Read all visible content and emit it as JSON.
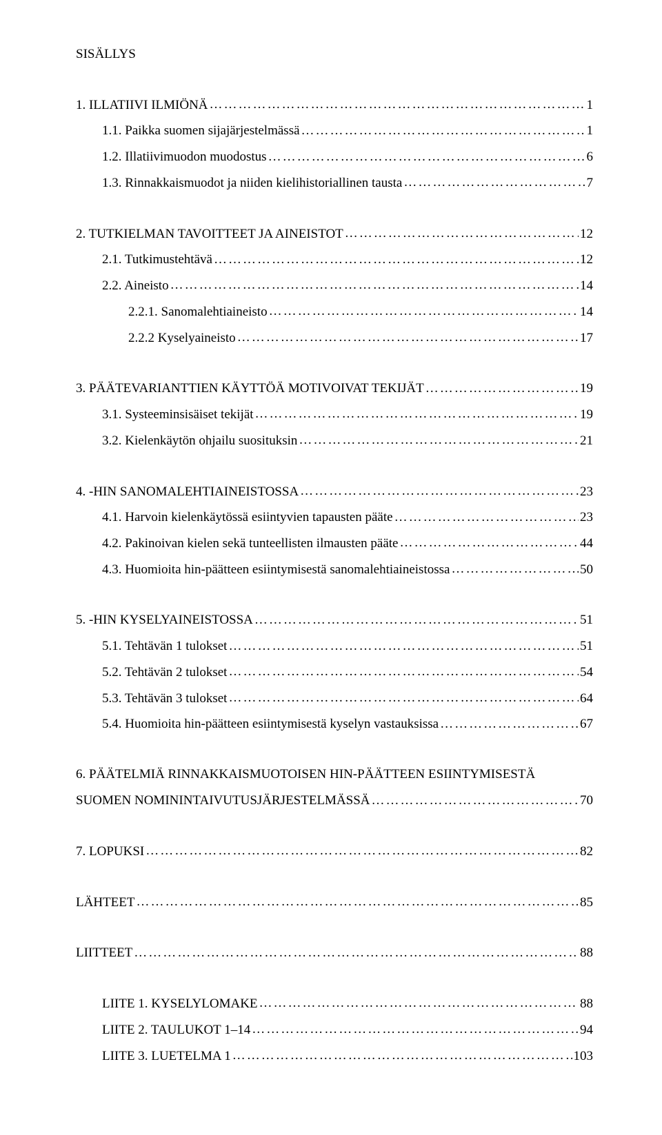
{
  "doc": {
    "title": "SISÄLLYS",
    "font_family": "Times New Roman",
    "font_size_pt": 14,
    "text_color": "#000000",
    "background_color": "#ffffff"
  },
  "toc": [
    {
      "entries": [
        {
          "level": 1,
          "label": "1. ILLATIIVI ILMIÖNÄ",
          "page": "1"
        },
        {
          "level": 2,
          "label": "1.1. Paikka suomen sijajärjestelmässä",
          "page": "1"
        },
        {
          "level": 2,
          "label": "1.2. Illatiivimuodon muodostus",
          "page": "6"
        },
        {
          "level": 2,
          "label": "1.3. Rinnakkaismuodot ja niiden kielihistoriallinen tausta",
          "page": "7"
        }
      ]
    },
    {
      "entries": [
        {
          "level": 1,
          "label": "2. TUTKIELMAN TAVOITTEET JA AINEISTOT",
          "page": "12"
        },
        {
          "level": 2,
          "label": "2.1. Tutkimustehtävä",
          "page": "12"
        },
        {
          "level": 2,
          "label": "2.2. Aineisto",
          "page": "14"
        },
        {
          "level": 3,
          "label": "2.2.1. Sanomalehtiaineisto",
          "page": "14"
        },
        {
          "level": 3,
          "label": "2.2.2 Kyselyaineisto",
          "page": "17"
        }
      ]
    },
    {
      "entries": [
        {
          "level": 1,
          "label": "3. PÄÄTEVARIANTTIEN KÄYTTÖÄ MOTIVOIVAT TEKIJÄT",
          "page": "19"
        },
        {
          "level": 2,
          "label": "3.1. Systeeminsisäiset tekijät",
          "page": "19"
        },
        {
          "level": 2,
          "label": "3.2. Kielenkäytön ohjailu suosituksin",
          "page": "21"
        }
      ]
    },
    {
      "entries": [
        {
          "level": 1,
          "label": "4. -HIN SANOMALEHTIAINEISTOSSA",
          "page": "23"
        },
        {
          "level": 2,
          "label": "4.1. Harvoin kielenkäytössä esiintyvien tapausten pääte",
          "page": "23"
        },
        {
          "level": 2,
          "label": "4.2. Pakinoivan kielen sekä tunteellisten ilmausten pääte",
          "page": "44"
        },
        {
          "level": 2,
          "label": "4.3. Huomioita hin-päätteen esiintymisestä sanomalehtiaineistossa",
          "page": "50"
        }
      ]
    },
    {
      "entries": [
        {
          "level": 1,
          "label": "5. -HIN KYSELYAINEISTOSSA",
          "page": "51"
        },
        {
          "level": 2,
          "label": "5.1. Tehtävän 1 tulokset",
          "page": "51"
        },
        {
          "level": 2,
          "label": "5.2. Tehtävän 2 tulokset",
          "page": "54"
        },
        {
          "level": 2,
          "label": "5.3. Tehtävän 3 tulokset",
          "page": "64"
        },
        {
          "level": 2,
          "label": "5.4. Huomioita hin-päätteen esiintymisestä kyselyn vastauksissa",
          "page": "67"
        }
      ]
    },
    {
      "entries": [
        {
          "level": 1,
          "label": "6. PÄÄTELMIÄ RINNAKKAISMUOTOISEN HIN-PÄÄTTEEN ESIINTYMISESTÄ SUOMEN NOMININTAIVUTUSJÄRJESTELMÄSSÄ",
          "page": "70",
          "wrap": true
        }
      ]
    },
    {
      "entries": [
        {
          "level": 1,
          "label": "7. LOPUKSI",
          "page": "82"
        }
      ]
    },
    {
      "entries": [
        {
          "level": 1,
          "label": "LÄHTEET",
          "page": "85"
        }
      ]
    },
    {
      "entries": [
        {
          "level": 1,
          "label": "LIITTEET",
          "page": "88"
        }
      ]
    },
    {
      "entries": [
        {
          "level": 2,
          "label": "LIITE 1. KYSELYLOMAKE",
          "page": "88"
        },
        {
          "level": 2,
          "label": "LIITE 2. TAULUKOT 1–14",
          "page": "94"
        },
        {
          "level": 2,
          "label": "LIITE 3. LUETELMA 1",
          "page": "103"
        }
      ]
    }
  ]
}
